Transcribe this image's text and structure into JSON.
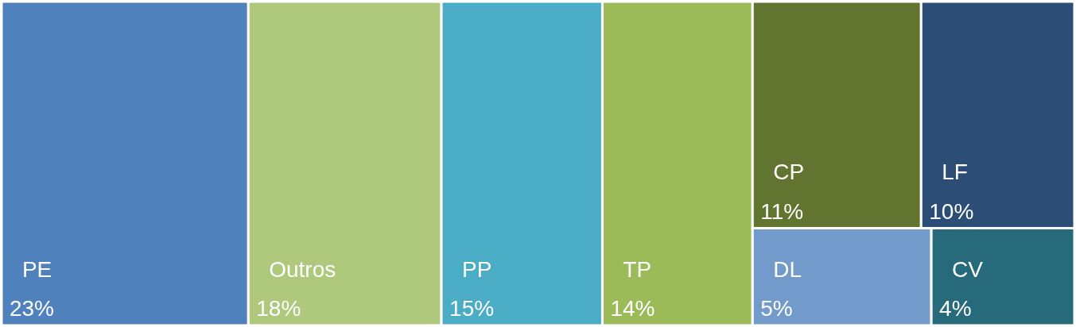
{
  "chart_data": {
    "type": "other",
    "categories": [
      "PE",
      "Outros",
      "PP",
      "TP",
      "CP",
      "LF",
      "DL",
      "CV"
    ],
    "values": [
      23,
      18,
      15,
      14,
      11,
      10,
      5,
      4
    ],
    "value_labels": [
      "23%",
      "18%",
      "15%",
      "14%",
      "11%",
      "10%",
      "5%",
      "4%"
    ],
    "colors": [
      "#4f81bd",
      "#afc97c",
      "#4bacc6",
      "#9bbb59",
      "#617430",
      "#2c4d75",
      "#729aca",
      "#276a7c"
    ]
  }
}
